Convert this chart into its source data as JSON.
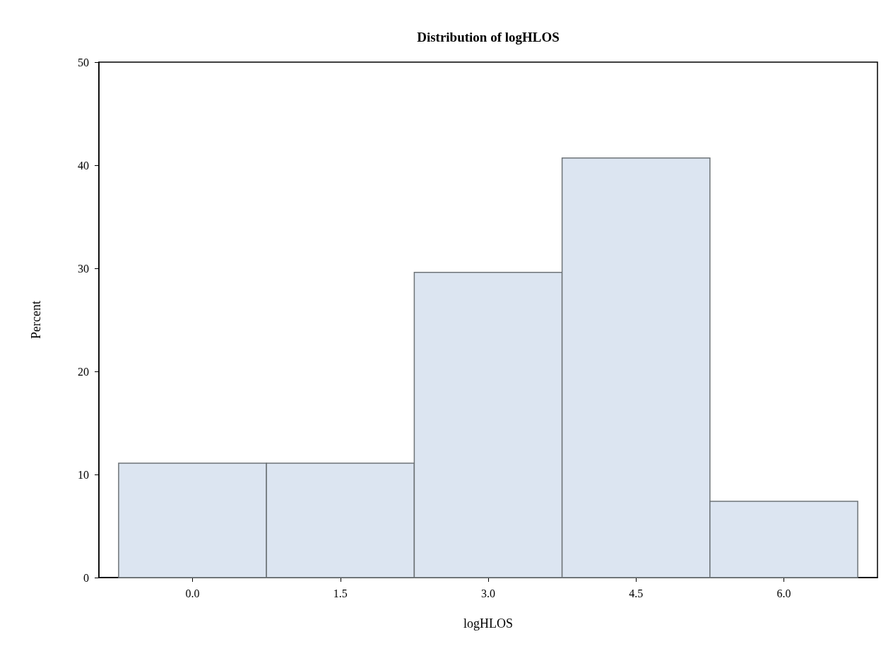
{
  "chart_data": {
    "type": "histogram",
    "title": "Distribution of logHLOS",
    "xlabel": "logHLOS",
    "ylabel": "Percent",
    "bins": [
      -0.75,
      0.75,
      2.25,
      3.75,
      5.25,
      6.75
    ],
    "values": [
      11.1,
      11.1,
      29.6,
      40.7,
      7.4
    ],
    "color": "#dce5f1",
    "xlim": [
      -0.95,
      6.95
    ],
    "xticks": [
      {
        "value": 0,
        "label": "0.0"
      },
      {
        "value": 1.5,
        "label": "1.5"
      },
      {
        "value": 3,
        "label": "3.0"
      },
      {
        "value": 4.5,
        "label": "4.5"
      },
      {
        "value": 6,
        "label": "6.0"
      }
    ],
    "ylim": [
      0,
      50
    ],
    "yticks": [
      0,
      10,
      20,
      30,
      40,
      50
    ],
    "grid": false
  }
}
